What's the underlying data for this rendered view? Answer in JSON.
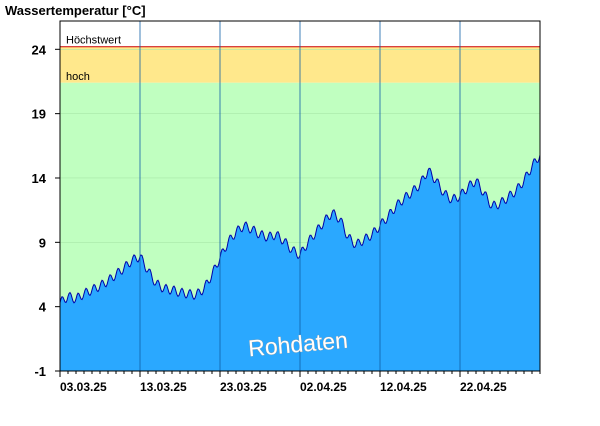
{
  "chart_data": {
    "type": "area",
    "title": "Wassertemperatur [°C]",
    "ylim": [
      -1,
      26.2
    ],
    "yticks": [
      "24",
      "19",
      "14",
      "9",
      "4",
      "-1"
    ],
    "ytick_values": [
      24,
      19,
      14,
      9,
      4,
      -1
    ],
    "xlim_days": [
      0,
      60
    ],
    "xticks": [
      {
        "label": "03.03.25",
        "day": 0
      },
      {
        "label": "13.03.25",
        "day": 10
      },
      {
        "label": "23.03.25",
        "day": 20
      },
      {
        "label": "02.04.25",
        "day": 30
      },
      {
        "label": "12.04.25",
        "day": 40
      },
      {
        "label": "22.04.25",
        "day": 50
      }
    ],
    "bands": [
      {
        "label": "Höchstwert",
        "from": 24.2,
        "to": 26.2,
        "color": "#ffffff",
        "line_color": "#cc0000"
      },
      {
        "label": "hoch",
        "from": 21.4,
        "to": 24.2,
        "color": "#ffe88c"
      },
      {
        "label": "",
        "from": -1,
        "to": 21.4,
        "color": "#c0ffc0"
      }
    ],
    "series": [
      {
        "fill_color": "#2aa8ff",
        "line_color": "#0000aa",
        "x": [
          0,
          1,
          2,
          3,
          4,
          5,
          6,
          7,
          8,
          9,
          10,
          11,
          12,
          13,
          14,
          15,
          16,
          17,
          18,
          19,
          20,
          21,
          22,
          23,
          24,
          25,
          26,
          27,
          28,
          29,
          30,
          31,
          32,
          33,
          34,
          35,
          36,
          37,
          38,
          39,
          40,
          41,
          42,
          43,
          44,
          45,
          46,
          47,
          48,
          49,
          50,
          51,
          52,
          53,
          54,
          55,
          56,
          57,
          58,
          59,
          60
        ],
        "values": [
          4.3,
          4.8,
          4.6,
          5.0,
          5.3,
          5.6,
          6.0,
          6.5,
          7.0,
          7.6,
          7.9,
          6.8,
          5.8,
          5.4,
          5.3,
          5.1,
          5.0,
          4.9,
          5.4,
          6.5,
          7.8,
          9.0,
          9.8,
          10.3,
          10.0,
          9.6,
          9.4,
          9.6,
          9.1,
          8.4,
          8.0,
          9.0,
          9.8,
          10.6,
          11.3,
          10.8,
          9.4,
          8.8,
          9.2,
          9.6,
          10.3,
          11.0,
          11.8,
          12.4,
          12.9,
          13.5,
          14.6,
          13.8,
          12.8,
          12.3,
          12.6,
          13.3,
          13.8,
          12.8,
          11.8,
          12.0,
          12.5,
          13.0,
          13.8,
          14.9,
          15.8
        ]
      }
    ],
    "watermark": "Rohdaten",
    "grid": true
  }
}
